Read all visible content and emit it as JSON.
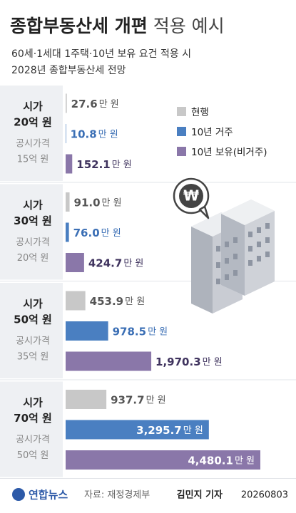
{
  "chart_data": {
    "type": "bar",
    "title": "종합부동산세 개편",
    "title_light": "적용 예시",
    "subtitle": [
      "60세·1세대 1주택·10년 보유 요건 적용 시",
      "2028년 종합부동산세 전망"
    ],
    "categories": [
      [
        "시가",
        "20억 원"
      ],
      [
        "시가",
        "30억 원"
      ],
      [
        "시가",
        "50억 원"
      ],
      [
        "시가",
        "70억 원"
      ]
    ],
    "sublabels": [
      [
        "공시가격",
        "15억 원"
      ],
      [
        "공시가격",
        "20억 원"
      ],
      [
        "공시가격",
        "35억 원"
      ],
      [
        "공시가격",
        "50억 원"
      ]
    ],
    "unit": "만 원",
    "series": [
      {
        "name": "현행",
        "color": "#c8c8c8",
        "text_color": "#555555",
        "values": [
          27.6,
          91.0,
          453.9,
          937.7
        ],
        "value_labels": [
          "27.6",
          "91.0",
          "453.9",
          "937.7"
        ]
      },
      {
        "name": "10년 거주",
        "color": "#4a7fc1",
        "text_color": "#3b6fb5",
        "values": [
          10.8,
          76.0,
          978.5,
          3295.7
        ],
        "value_labels": [
          "10.8",
          "76.0",
          "978.5",
          "3,295.7"
        ]
      },
      {
        "name": "10년 보유(비거주)",
        "color": "#8a77a9",
        "text_color": "#3f335e",
        "values": [
          152.1,
          424.7,
          1970.3,
          4480.1
        ],
        "value_labels": [
          "152.1",
          "424.7",
          "1,970.3",
          "4,480.1"
        ]
      }
    ],
    "icon_symbol": "₩",
    "footer": {
      "logo": "연합뉴스",
      "source": "자료: 재정경제부",
      "author": "김민지 기자",
      "date": "20260803"
    }
  }
}
